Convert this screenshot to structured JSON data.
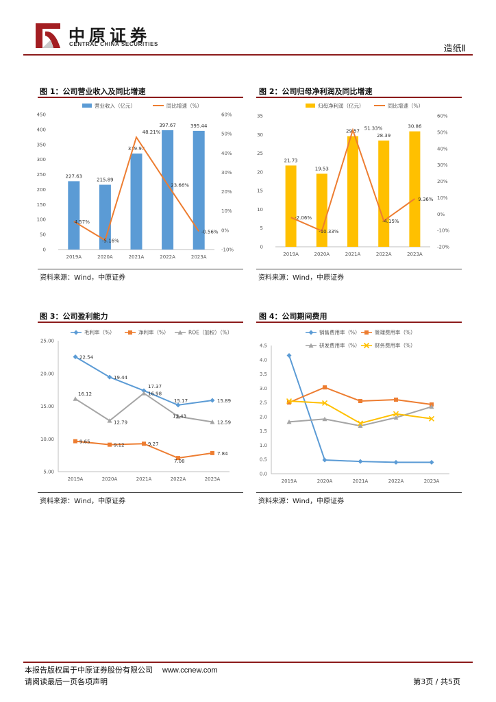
{
  "header": {
    "company_cn": "中原证券",
    "company_en": "CENTRAL CHINA SECURITIES",
    "industry": "造纸Ⅱ"
  },
  "figures": [
    {
      "title": "图 1：公司营业收入及同比增速",
      "source": "资料来源：Wind，中原证券"
    },
    {
      "title": "图 2：公司归母净利润及同比增速",
      "source": "资料来源：Wind，中原证券"
    },
    {
      "title": "图 3：公司盈利能力",
      "source": "资料来源：Wind，中原证券"
    },
    {
      "title": "图 4：公司期间费用",
      "source": "资料来源：Wind，中原证券"
    }
  ],
  "chart_data": [
    {
      "type": "bar+line",
      "title": "图 1：公司营业收入及同比增速",
      "categories": [
        "2019A",
        "2020A",
        "2021A",
        "2022A",
        "2023A"
      ],
      "series": [
        {
          "name": "营业收入（亿元）",
          "kind": "bar",
          "axis": "left",
          "color": "#5b9bd5",
          "values": [
            227.63,
            215.89,
            319.97,
            397.67,
            395.44
          ],
          "labels": [
            "227.63",
            "215.89",
            "319.97",
            "397.67",
            "395.44"
          ]
        },
        {
          "name": "同比增速（%）",
          "kind": "line",
          "axis": "right",
          "color": "#ed7d31",
          "values": [
            4.57,
            -5.16,
            48.21,
            23.66,
            -0.56
          ],
          "labels": [
            "4.57%",
            "-5.16%",
            "48.21%",
            "23.66%",
            "-0.56%"
          ]
        }
      ],
      "left_axis": {
        "min": 0,
        "max": 450,
        "ticks": [
          "0",
          "50",
          "100",
          "150",
          "200",
          "250",
          "300",
          "350",
          "400",
          "450"
        ]
      },
      "right_axis": {
        "min": -10,
        "max": 60,
        "ticks": [
          "-10%",
          "0%",
          "10%",
          "20%",
          "30%",
          "40%",
          "50%",
          "60%"
        ]
      }
    },
    {
      "type": "bar+line",
      "title": "图 2：公司归母净利润及同比增速",
      "categories": [
        "2019A",
        "2020A",
        "2021A",
        "2022A",
        "2023A"
      ],
      "series": [
        {
          "name": "归母净利润（亿元）",
          "kind": "bar",
          "axis": "left",
          "color": "#ffc000",
          "values": [
            21.73,
            19.53,
            29.57,
            28.39,
            30.86
          ],
          "labels": [
            "21.73",
            "19.53",
            "29.57",
            "28.39",
            "30.86"
          ]
        },
        {
          "name": "同比增速（%）",
          "kind": "line",
          "axis": "right",
          "color": "#ed7d31",
          "values": [
            -2.06,
            -10.33,
            51.33,
            -4.15,
            9.36
          ],
          "labels": [
            "-2.06%",
            "-10.33%",
            "51.33%",
            "-4.15%",
            "9.36%"
          ]
        }
      ],
      "left_axis": {
        "min": 0,
        "max": 35,
        "ticks": [
          "0",
          "5",
          "10",
          "15",
          "20",
          "25",
          "30",
          "35"
        ]
      },
      "right_axis": {
        "min": -20,
        "max": 60,
        "ticks": [
          "-20%",
          "-10%",
          "0%",
          "10%",
          "20%",
          "30%",
          "40%",
          "50%",
          "60%"
        ]
      }
    },
    {
      "type": "line",
      "title": "图 3：公司盈利能力",
      "categories": [
        "2019A",
        "2020A",
        "2021A",
        "2022A",
        "2023A"
      ],
      "series": [
        {
          "name": "毛利率（%）",
          "marker": "diamond",
          "color": "#5b9bd5",
          "values": [
            22.54,
            19.44,
            17.37,
            15.17,
            15.89
          ],
          "labels": [
            "22.54",
            "19.44",
            "17.37",
            "15.17",
            "15.89"
          ]
        },
        {
          "name": "净利率（%）",
          "marker": "square",
          "color": "#ed7d31",
          "values": [
            9.65,
            9.12,
            9.27,
            7.08,
            7.84
          ],
          "labels": [
            "9.65",
            "9.12",
            "9.27",
            "7.08",
            "7.84"
          ]
        },
        {
          "name": "ROE（加权）（%）",
          "marker": "triangle",
          "color": "#a5a5a5",
          "values": [
            16.12,
            12.79,
            16.98,
            13.43,
            12.59
          ],
          "labels": [
            "16.12",
            "12.79",
            "16.98",
            "13.43",
            "12.59"
          ]
        }
      ],
      "y_axis": {
        "min": 5,
        "max": 25,
        "ticks": [
          "5.00",
          "10.00",
          "15.00",
          "20.00",
          "25.00"
        ]
      }
    },
    {
      "type": "line",
      "title": "图 4：公司期间费用",
      "categories": [
        "2019A",
        "2020A",
        "2021A",
        "2022A",
        "2023A"
      ],
      "series": [
        {
          "name": "销售费用率（%）",
          "marker": "diamond",
          "color": "#5b9bd5",
          "values": [
            4.15,
            0.48,
            0.43,
            0.4,
            0.4
          ]
        },
        {
          "name": "管理费用率（%）",
          "marker": "square",
          "color": "#ed7d31",
          "values": [
            2.5,
            3.03,
            2.55,
            2.6,
            2.43
          ]
        },
        {
          "name": "研发费用率（%）",
          "marker": "triangle",
          "color": "#a5a5a5",
          "values": [
            1.82,
            1.92,
            1.68,
            1.97,
            2.35
          ]
        },
        {
          "name": "财务费用率（%）",
          "marker": "x",
          "color": "#ffc000",
          "values": [
            2.55,
            2.48,
            1.77,
            2.1,
            1.93
          ]
        }
      ],
      "y_axis": {
        "min": 0,
        "max": 4.5,
        "ticks": [
          "0.0",
          "0.5",
          "1.0",
          "1.5",
          "2.0",
          "2.5",
          "3.0",
          "3.5",
          "4.0",
          "4.5"
        ]
      }
    }
  ],
  "footer": {
    "copyright": "本报告版权属于中原证券股份有限公司",
    "url": "www.ccnew.com",
    "disclaimer": "请阅读最后一页各项声明",
    "page": "第3页 / 共5页"
  }
}
